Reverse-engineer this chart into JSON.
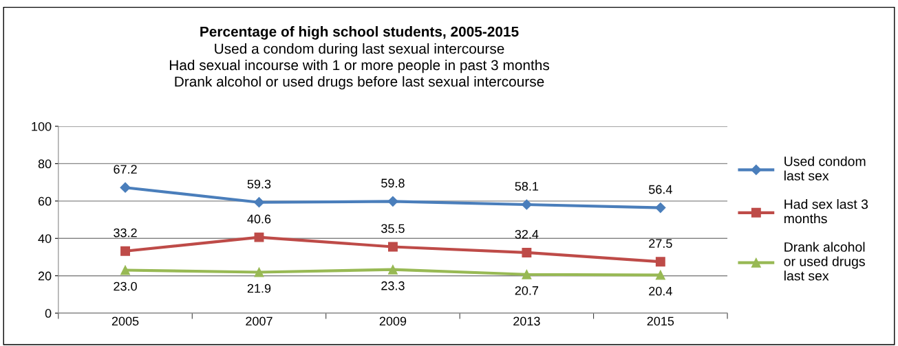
{
  "chart_data": {
    "type": "line",
    "title": "Percentage of high school students, 2005-2015",
    "subtitle": "Used a condom during last sexual intercourse\nHad sexual incourse with 1 or more people in past 3 months\nDrank alcohol or used drugs before last sexual intercourse",
    "categories": [
      "2005",
      "2007",
      "2009",
      "2013",
      "2015"
    ],
    "series": [
      {
        "name": "Used condom\nlast sex",
        "color": "#4a7ebb",
        "marker": "diamond",
        "values": [
          67.2,
          59.3,
          59.8,
          58.1,
          56.4
        ],
        "value_labels": [
          "67.2",
          "59.3",
          "59.8",
          "58.1",
          "56.4"
        ]
      },
      {
        "name": "Had sex last 3\nmonths",
        "color": "#be4b48",
        "marker": "square",
        "values": [
          33.2,
          40.6,
          35.5,
          32.4,
          27.5
        ],
        "value_labels": [
          "33.2",
          "40.6",
          "35.5",
          "32.4",
          "27.5"
        ]
      },
      {
        "name": "Drank alcohol\nor used drugs\nlast sex",
        "color": "#98b954",
        "marker": "triangle",
        "values": [
          23.0,
          21.9,
          23.3,
          20.7,
          20.4
        ],
        "value_labels": [
          "23.0",
          "21.9",
          "23.3",
          "20.7",
          "20.4"
        ]
      }
    ],
    "ylim": [
      0,
      100
    ],
    "yticks": [
      0,
      20,
      40,
      60,
      80,
      100
    ],
    "grid": "y",
    "legend": "right",
    "line_style": "solid"
  }
}
